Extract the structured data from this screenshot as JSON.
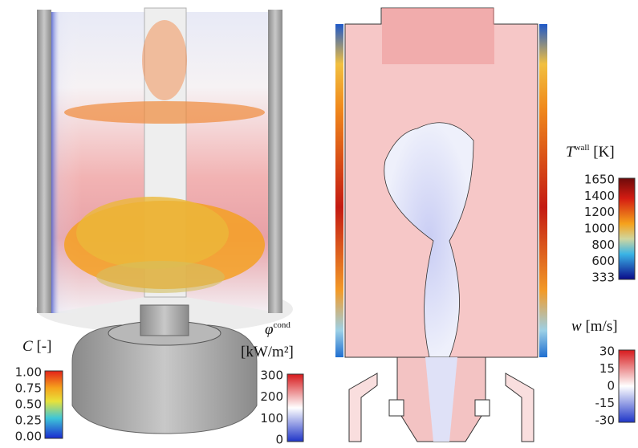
{
  "left_panel": {
    "colorbars": [
      {
        "symbol": "C",
        "unit": "[-]",
        "ticks": [
          "1.00",
          "0.75",
          "0.50",
          "0.25",
          "0.00"
        ]
      },
      {
        "symbol": "φ",
        "superscript": "cond",
        "unit": "[kW/m²]",
        "ticks": [
          "300",
          "200",
          "100",
          "0"
        ]
      }
    ]
  },
  "right_panel": {
    "colorbars": [
      {
        "symbol": "T",
        "superscript": "wall",
        "unit": "[K]",
        "ticks": [
          "1650",
          "1400",
          "1200",
          "1000",
          "800",
          "600",
          "333"
        ]
      },
      {
        "symbol": "w",
        "unit": "[m/s]",
        "ticks": [
          "30",
          "15",
          "0",
          "-15",
          "-30"
        ]
      }
    ]
  }
}
